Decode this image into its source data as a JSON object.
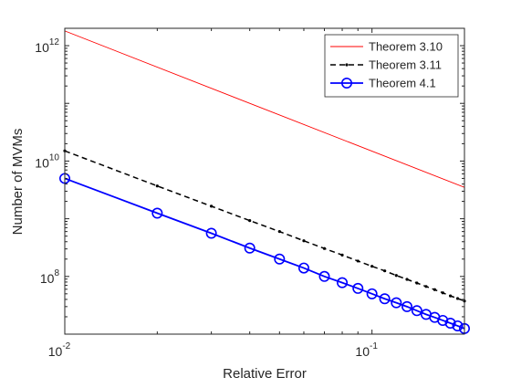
{
  "chart_data": {
    "type": "line",
    "xlabel": "Relative Error",
    "ylabel": "Number of MVMs",
    "xscale": "log",
    "yscale": "log",
    "xlim": [
      0.01,
      0.2
    ],
    "ylim": [
      10000000,
      2000000000000
    ],
    "xticks": [
      {
        "value": 0.01,
        "base": "10",
        "exp": "-2"
      },
      {
        "value": 0.1,
        "base": "10",
        "exp": "-1"
      }
    ],
    "yticks": [
      {
        "value": 100000000,
        "base": "10",
        "exp": "8"
      },
      {
        "value": 10000000000,
        "base": "10",
        "exp": "10"
      },
      {
        "value": 1000000000000,
        "base": "10",
        "exp": "12"
      }
    ],
    "grid": false,
    "legend_position": "top-right",
    "series": [
      {
        "name": "Theorem 3.10",
        "color": "#ff0000",
        "style": "solid-thin",
        "marker": "none",
        "x": [
          0.01,
          0.2
        ],
        "y": [
          1800000000000,
          3500000000
        ]
      },
      {
        "name": "Theorem 3.11",
        "color": "#000000",
        "style": "dashed",
        "marker": "dot",
        "x": [
          0.01,
          0.02,
          0.03,
          0.04,
          0.05,
          0.06,
          0.07,
          0.08,
          0.09,
          0.1,
          0.11,
          0.12,
          0.13,
          0.14,
          0.15,
          0.16,
          0.17,
          0.18,
          0.19,
          0.2
        ],
        "y": [
          15000000000,
          3700000000,
          1650000000,
          930000000,
          600000000,
          415000000,
          305000000,
          235000000,
          185000000,
          150000000,
          125000000,
          104000000,
          89000000,
          77000000,
          67000000,
          59000000,
          52000000,
          46000000,
          41500000,
          37500000
        ]
      },
      {
        "name": "Theorem 4.1",
        "color": "#0000ff",
        "style": "solid",
        "marker": "circle",
        "x": [
          0.01,
          0.02,
          0.03,
          0.04,
          0.05,
          0.06,
          0.07,
          0.08,
          0.09,
          0.1,
          0.11,
          0.12,
          0.13,
          0.14,
          0.15,
          0.16,
          0.17,
          0.18,
          0.19,
          0.2
        ],
        "y": [
          5000000000,
          1250000000,
          560000000,
          310000000,
          200000000,
          140000000,
          100000000,
          78000000,
          62000000,
          50000000,
          41000000,
          35000000,
          30000000,
          25500000,
          22000000,
          19500000,
          17300000,
          15500000,
          13900000,
          12500000
        ]
      }
    ]
  }
}
